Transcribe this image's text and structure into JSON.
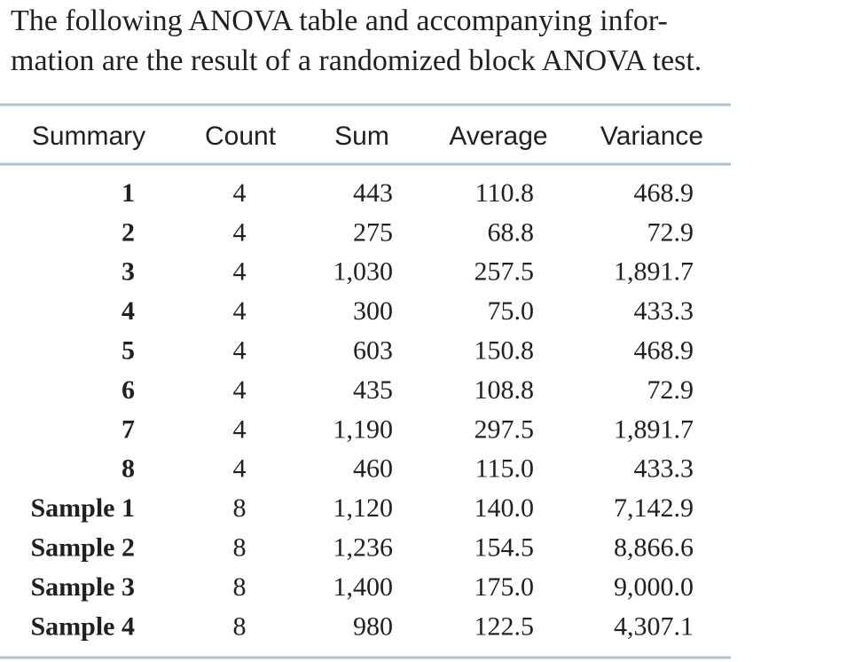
{
  "intro": {
    "lines": [
      "The following ANOVA table and accompanying infor-",
      "mation are the result of a randomized block ANOVA test."
    ]
  },
  "table": {
    "header": [
      "Summary",
      "Count",
      "Sum",
      "Average",
      "Variance"
    ],
    "rows": [
      [
        "1",
        "4",
        "443",
        "110.8",
        "468.9"
      ],
      [
        "2",
        "4",
        "275",
        "68.8",
        "72.9"
      ],
      [
        "3",
        "4",
        "1,030",
        "257.5",
        "1,891.7"
      ],
      [
        "4",
        "4",
        "300",
        "75.0",
        "433.3"
      ],
      [
        "5",
        "4",
        "603",
        "150.8",
        "468.9"
      ],
      [
        "6",
        "4",
        "435",
        "108.8",
        "72.9"
      ],
      [
        "7",
        "4",
        "1,190",
        "297.5",
        "1,891.7"
      ],
      [
        "8",
        "4",
        "460",
        "115.0",
        "433.3"
      ],
      [
        "Sample 1",
        "8",
        "1,120",
        "140.0",
        "7,142.9"
      ],
      [
        "Sample 2",
        "8",
        "1,236",
        "154.5",
        "8,866.6"
      ],
      [
        "Sample 3",
        "8",
        "1,400",
        "175.0",
        "9,000.0"
      ],
      [
        "Sample 4",
        "8",
        "980",
        "122.5",
        "4,307.1"
      ]
    ]
  }
}
